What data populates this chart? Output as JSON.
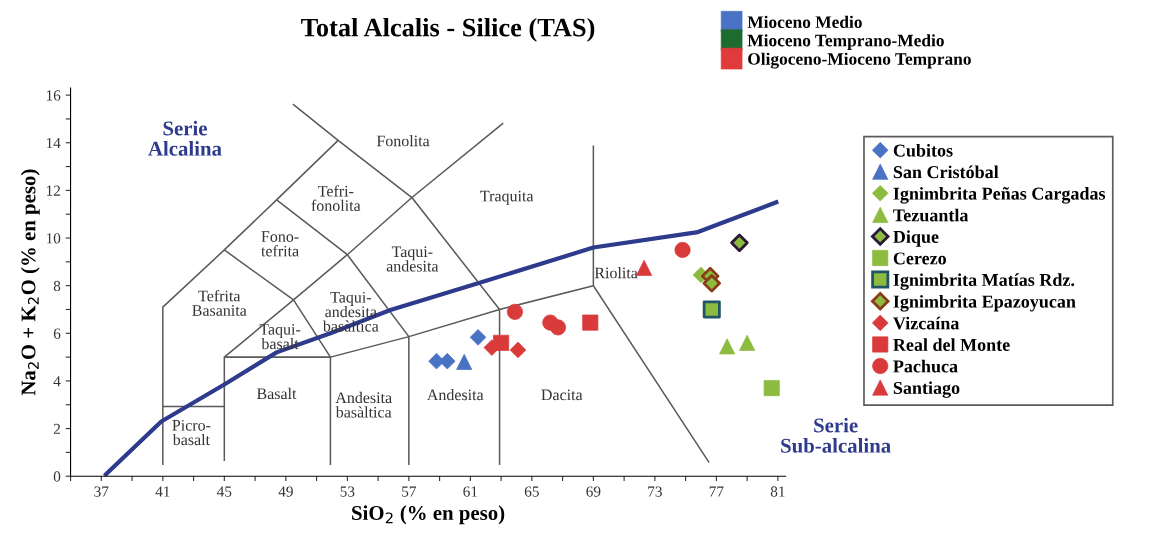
{
  "chart_data": {
    "type": "scatter",
    "title": "Total Alcalis - Silice (TAS)",
    "xlabel": "SiO$_{2}$ (% en peso)",
    "ylabel": "Na$_{2}$O + K$_{2}$O (% en peso)",
    "xlim": [
      35,
      81.5
    ],
    "ylim": [
      0,
      16.3
    ],
    "xticks": [
      {
        "value": 35,
        "label": null
      },
      37,
      {
        "value": 39,
        "label": null
      },
      41,
      {
        "value": 43,
        "label": null
      },
      45,
      {
        "value": 47,
        "label": null
      },
      49,
      {
        "value": 51,
        "label": null
      },
      53,
      {
        "value": 55,
        "label": null
      },
      57,
      {
        "value": 59,
        "label": null
      },
      61,
      {
        "value": 63,
        "label": null
      },
      65,
      {
        "value": 67,
        "label": null
      },
      69,
      {
        "value": 71,
        "label": null
      },
      73,
      {
        "value": 75,
        "label": null
      },
      77,
      {
        "value": 79,
        "label": null
      },
      81
    ],
    "yticks": [
      0,
      {
        "value": 1,
        "label": null
      },
      2,
      {
        "value": 3,
        "label": null
      },
      4,
      {
        "value": 5,
        "label": null
      },
      6,
      {
        "value": 7,
        "label": null
      },
      8,
      {
        "value": 9,
        "label": null
      },
      10,
      {
        "value": 11,
        "label": null
      },
      12,
      {
        "value": 13,
        "label": null
      },
      14,
      {
        "value": 15,
        "label": null
      },
      16
    ],
    "grid": false,
    "legend": "right",
    "series": [
      {
        "type": "line",
        "color": "#5a5a5a",
        "marker": "none",
        "line_style": "solid",
        "x": [
          41,
          41,
          45,
          48.4,
          52.4,
          49.5,
          null,
          52.4,
          57.2,
          63.1,
          null,
          57.2,
          62.9,
          62.9,
          null,
          62.9,
          69.0,
          69.0,
          null,
          69.0,
          76.5,
          null,
          45,
          45,
          51.9,
          51.9,
          null,
          51.9,
          57.0,
          57.0,
          null,
          57.0,
          62.9,
          null,
          45,
          49.5,
          53.0,
          57.2,
          null,
          45,
          49.5,
          51.9,
          null,
          48.4,
          53.0,
          57.0,
          null,
          41,
          45
        ],
        "values": [
          0.5,
          7.1,
          9.5,
          11.6,
          14.1,
          15.6,
          null,
          14.1,
          11.7,
          14.8,
          null,
          11.7,
          7.0,
          0.5,
          null,
          7.0,
          8.0,
          13.85,
          null,
          8.0,
          0.6,
          null,
          0.67,
          5.0,
          5.0,
          0.5,
          null,
          5.0,
          5.86,
          0.5,
          null,
          5.86,
          7.0,
          null,
          5.0,
          7.4,
          9.3,
          11.7,
          null,
          9.5,
          7.4,
          5.0,
          null,
          11.6,
          9.3,
          5.86,
          null,
          2.93,
          2.93
        ]
      },
      {
        "type": "line",
        "color": "#2e3a8c",
        "marker": "none",
        "line_style": "solid",
        "x": [
          37.3,
          40.9,
          45,
          48.4,
          51.9,
          55.8,
          61.5,
          69,
          75.8,
          80.9
        ],
        "values": [
          0.08,
          2.3,
          3.85,
          5.2,
          6.0,
          6.98,
          8.1,
          9.6,
          10.25,
          11.5
        ]
      },
      {
        "name": "Mioceno Medio",
        "color": "#4a72c4",
        "marker": "square"
      },
      {
        "name": "Mioceno Temprano-Medio",
        "color": "#1e6b30",
        "marker": "square"
      },
      {
        "name": "Oligoceno-Mioceno Temprano",
        "color": "#e03a3a",
        "marker": "square"
      },
      {
        "name": "Cubitos",
        "color": "#4a72c4",
        "marker": "diamond",
        "x": [
          58.8,
          59.5,
          61.5
        ],
        "values": [
          4.83,
          4.83,
          5.83
        ]
      },
      {
        "name": "San Cristóbal",
        "color": "#4a72c4",
        "marker": "triangle",
        "x": [
          60.6
        ],
        "values": [
          4.8
        ]
      },
      {
        "name": "Ignimbrita Peñas Cargadas",
        "color": "#8dbb3f",
        "marker": "diamond",
        "x": [
          76.0
        ],
        "values": [
          8.45
        ]
      },
      {
        "name": "Tezuantla",
        "color": "#8dbb3f",
        "marker": "triangle",
        "x": [
          77.7,
          79.0
        ],
        "values": [
          5.45,
          5.6
        ]
      },
      {
        "name": "Dique",
        "color": "#8dbb3f",
        "marker": "diamond",
        "x": [
          78.5
        ],
        "values": [
          9.8
        ]
      },
      {
        "name": "Cerezo",
        "color": "#8dbb3f",
        "marker": "square",
        "x": [
          80.6
        ],
        "values": [
          3.7
        ]
      },
      {
        "name": "Ignimbrita Matías Rdz.",
        "color": "#8dbb3f",
        "marker": "square",
        "x": [
          76.7
        ],
        "values": [
          7.0
        ]
      },
      {
        "name": "Ignimbrita Epazoyucan",
        "color": "#8dbb3f",
        "marker": "diamond",
        "x": [
          76.6,
          76.7
        ],
        "values": [
          8.4,
          8.1
        ]
      },
      {
        "name": "Vizcaína",
        "color": "#d93a3a",
        "marker": "diamond",
        "x": [
          62.4,
          64.1
        ],
        "values": [
          5.4,
          5.3
        ]
      },
      {
        "name": "Real del Monte",
        "color": "#d93a3a",
        "marker": "square",
        "x": [
          63.0,
          68.8
        ],
        "values": [
          5.6,
          6.45
        ]
      },
      {
        "name": "Pachuca",
        "color": "#d93a3a",
        "marker": "circle",
        "x": [
          63.9,
          66.2,
          66.7,
          74.8
        ],
        "values": [
          6.9,
          6.45,
          6.25,
          9.5
        ]
      },
      {
        "name": "Santiago",
        "color": "#d93a3a",
        "marker": "triangle",
        "x": [
          72.3
        ],
        "values": [
          8.75
        ]
      }
    ],
    "annotations": [
      "Fonolita",
      "Tefri-\nfonolita",
      "Fono-\ntefrita",
      "Tefrita\nBasanita",
      "Taqui-\nbasalt",
      "Taqui-\nandesita\nbasàltica",
      "Taqui-\nandesita",
      "Traquita",
      "Riolita",
      "Basalt",
      "Andesita\nbasàltica",
      "Andesita",
      "Dacita",
      "Picro-\nbasalt",
      "Serie\nAlcalina",
      "Serie\nSub-alcalina"
    ]
  }
}
